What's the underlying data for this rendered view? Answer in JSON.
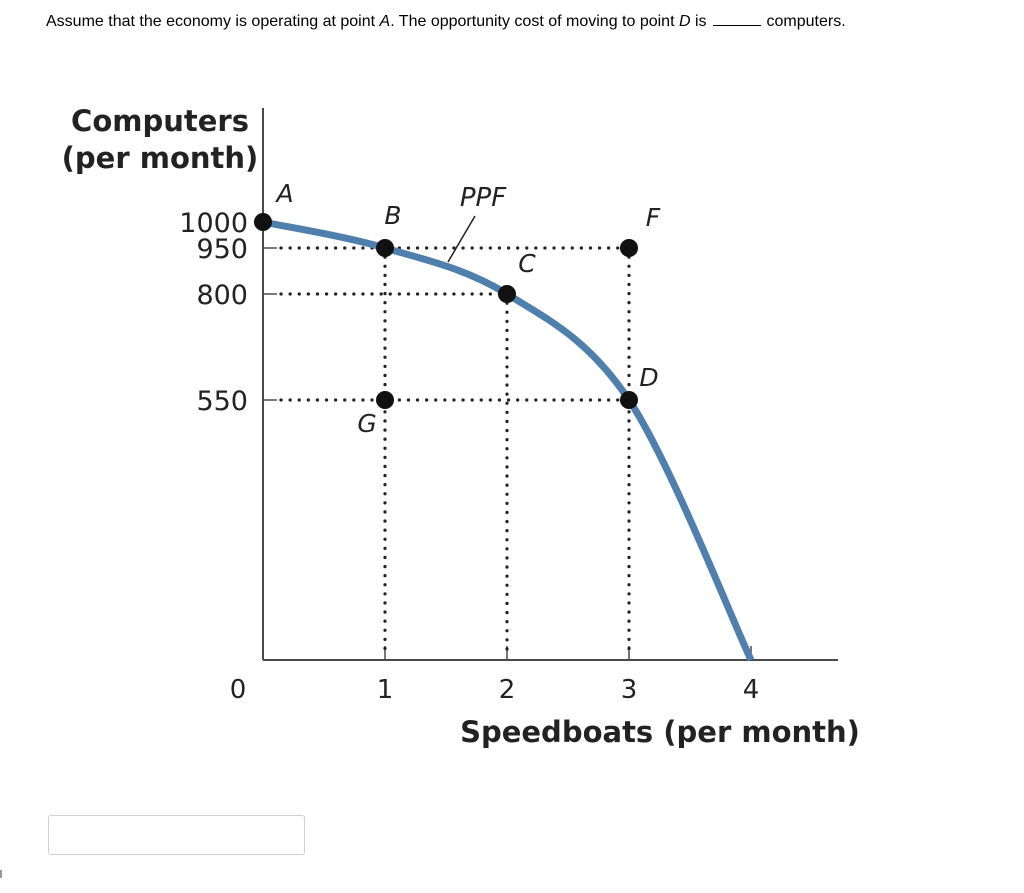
{
  "question": {
    "part1": "Assume that the economy is operating at point ",
    "point_a": "A",
    "part2": ". The opportunity cost of moving to point ",
    "point_d": "D",
    "part3": " is",
    "part4": "computers."
  },
  "answer": {
    "value": "",
    "placeholder": ""
  },
  "chart_data": {
    "type": "line",
    "ylabel_line1": "Computers",
    "ylabel_line2": "(per month)",
    "xlabel": "Speedboats (per month)",
    "curve_label": "PPF",
    "x_ticks": [
      0,
      1,
      2,
      3,
      4
    ],
    "y_ticks": [
      1000,
      950,
      800,
      550
    ],
    "xlim": [
      0,
      4
    ],
    "ylim": [
      0,
      1000
    ],
    "curve_color": "#4f7fac",
    "series": [
      {
        "x": [
          0,
          1,
          2,
          3,
          4
        ],
        "y": [
          1000,
          950,
          800,
          550,
          0
        ]
      }
    ],
    "points": [
      {
        "label": "A",
        "x": 0,
        "y": 1000
      },
      {
        "label": "B",
        "x": 1,
        "y": 950
      },
      {
        "label": "C",
        "x": 2,
        "y": 800
      },
      {
        "label": "D",
        "x": 3,
        "y": 550
      },
      {
        "label": "F",
        "x": 3,
        "y": 950
      },
      {
        "label": "G",
        "x": 1,
        "y": 550
      }
    ]
  }
}
